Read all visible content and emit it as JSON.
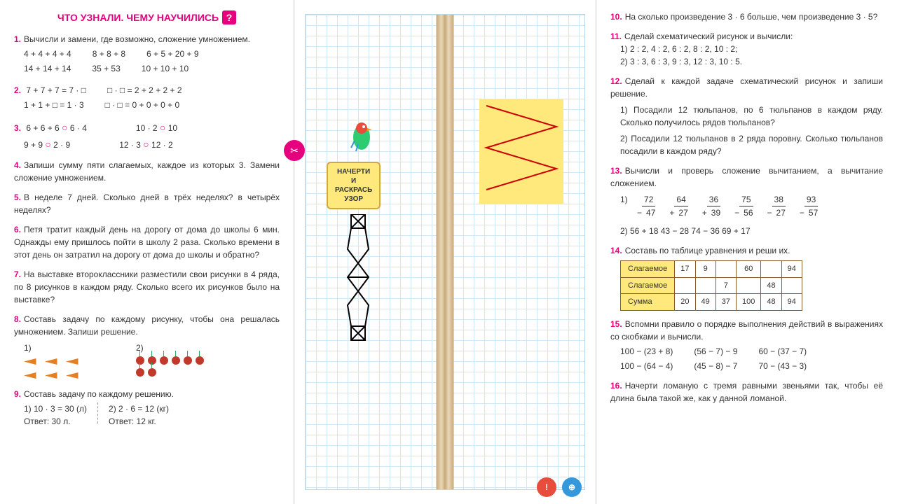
{
  "colors": {
    "accent": "#e6007e",
    "highlight": "#ffe97d",
    "grid": "#d0e8f5"
  },
  "left": {
    "header": "ЧТО УЗНАЛИ. ЧЕМУ НАУЧИЛИСЬ",
    "p1": {
      "num": "1.",
      "text": "Вычисли и замени, где возможно, сложение умножением.",
      "r1c1": "4 + 4 + 4 + 4",
      "r1c2": "8 + 8 + 8",
      "r1c3": "6 + 5 + 20 + 9",
      "r2c1": "14 + 14 + 14",
      "r2c2": "35 + 53",
      "r2c3": "10 + 10 + 10"
    },
    "p2": {
      "num": "2.",
      "r1c1": "7 + 7 + 7 = 7 · □",
      "r1c2": "□ · □ = 2 + 2 + 2 + 2",
      "r2c1": "1 + 1 + □ = 1 · 3",
      "r2c2": "□ · □ = 0 + 0 + 0 + 0"
    },
    "p3": {
      "num": "3.",
      "r1c1": "6 + 6 + 6 ○ 6 · 4",
      "r1c2": "10 · 2 ○ 10",
      "r2c1": "9 + 9 ○ 2 · 9",
      "r2c2": "12 · 3 ○ 12 · 2"
    },
    "p4": {
      "num": "4.",
      "text": "Запиши сумму пяти слагаемых, каждое из которых 3. Замени сложение умножением."
    },
    "p5": {
      "num": "5.",
      "text": "В неделе 7 дней. Сколько дней в трёх неделях? в четырёх неделях?"
    },
    "p6": {
      "num": "6.",
      "text": "Петя тратит каждый день на дорогу от дома до школы 6 мин. Однажды ему пришлось пойти в школу 2 раза. Сколько времени в этот день он затратил на дорогу от дома до школы и обратно?"
    },
    "p7": {
      "num": "7.",
      "text": "На выставке второклассники разместили свои рисунки в 4 ряда, по 8 рисунков в каждом ряду. Сколько всего их рисунков было на выставке?"
    },
    "p8": {
      "num": "8.",
      "text": "Составь задачу по каждому рисунку, чтобы она решалась умножением. Запиши решение.",
      "l1": "1)",
      "l2": "2)"
    },
    "p9": {
      "num": "9.",
      "text": "Составь задачу по каждому решению.",
      "a1": "1) 10 · 3 = 30  (л)",
      "a2": "Ответ: 30 л.",
      "b1": "2) 2 · 6 = 12  (кг)",
      "b2": "Ответ: 12 кг."
    }
  },
  "center": {
    "label1": "НАЧЕРТИ",
    "label2": "И",
    "label3": "РАСКРАСЬ",
    "label4": "УЗОР"
  },
  "right": {
    "p10": {
      "num": "10.",
      "text": "На сколько произведение 3 · 6 больше, чем произведение 3 · 5?"
    },
    "p11": {
      "num": "11.",
      "text": "Сделай схематический рисунок и вычисли:",
      "l1": "1)  2 : 2,  4 : 2,  6 : 2,  8 : 2,  10 : 2;",
      "l2": "2)  3 : 3,  6 : 3,  9 : 3,  12 : 3,  10 : 5."
    },
    "p12": {
      "num": "12.",
      "text": "Сделай к каждой задаче схематический рисунок и запиши решение.",
      "t1": "1) Посадили 12 тюльпанов, по 6 тюльпанов в каждом ряду. Сколько получилось рядов тюльпанов?",
      "t2": "2) Посадили 12 тюльпанов в 2 ряда поровну. Сколько тюльпанов посадили в каждом ряду?"
    },
    "p13": {
      "num": "13.",
      "text": "Вычисли и проверь сложение вычитанием, а вычитание сложением.",
      "l1": "1)",
      "f": [
        [
          "−",
          "72",
          "47"
        ],
        [
          "+",
          "64",
          "27"
        ],
        [
          "+",
          "36",
          "39"
        ],
        [
          "−",
          "75",
          "56"
        ],
        [
          "−",
          "38",
          "27"
        ],
        [
          "−",
          "93",
          "57"
        ]
      ],
      "l2": "2)  56 + 18          43 − 28          74 − 36          69 + 17"
    },
    "p14": {
      "num": "14.",
      "text": "Составь по таблице уравнения и реши их.",
      "rows": [
        [
          "Слагаемое",
          "17",
          "9",
          "",
          "60",
          "",
          "94"
        ],
        [
          "Слагаемое",
          "",
          "",
          "7",
          "",
          "48",
          ""
        ],
        [
          "Сумма",
          "20",
          "49",
          "37",
          "100",
          "48",
          "94"
        ]
      ]
    },
    "p15": {
      "num": "15.",
      "text": "Вспомни правило о порядке выполнения действий в выражениях со скобками и вычисли.",
      "r1c1": "100 − (23 + 8)",
      "r1c2": "(56 − 7) − 9",
      "r1c3": "60 − (37 − 7)",
      "r2c1": "100 − (64 − 4)",
      "r2c2": "(45 − 8) − 7",
      "r2c3": "70 − (43 − 3)"
    },
    "p16": {
      "num": "16.",
      "text": "Начерти ломаную с тремя равными звеньями так, чтобы её длина была такой же, как у данной ломаной."
    }
  }
}
